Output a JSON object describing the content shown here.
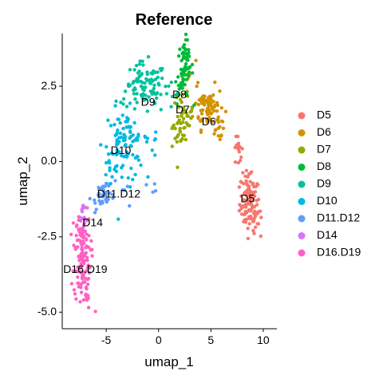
{
  "chart_data": {
    "type": "scatter",
    "title": "Reference",
    "xlabel": "umap_1",
    "ylabel": "umap_2",
    "xlim": [
      -9.2,
      11.3
    ],
    "ylim": [
      -5.55,
      4.25
    ],
    "xticks": [
      {
        "value": -5,
        "label": "-5"
      },
      {
        "value": 0,
        "label": "0"
      },
      {
        "value": 5,
        "label": "5"
      },
      {
        "value": 10,
        "label": "10"
      }
    ],
    "yticks": [
      {
        "value": 2.5,
        "label": "2.5"
      },
      {
        "value": 0,
        "label": "0.0"
      },
      {
        "value": -2.5,
        "label": "-2.5"
      },
      {
        "value": -5,
        "label": "-5.0"
      }
    ],
    "grid": false,
    "legend_position": "right",
    "series": [
      {
        "name": "D5",
        "color": "#F8766D",
        "cluster": {
          "cx": 8.7,
          "cy": -1.4,
          "sx": 0.6,
          "sy": 0.55,
          "n": 80
        },
        "path": [
          [
            6.9,
            0.9
          ],
          [
            7.5,
            0.4
          ],
          [
            8.0,
            -0.2
          ],
          [
            8.5,
            -0.8
          ],
          [
            8.9,
            -1.4
          ],
          [
            9.3,
            -1.9
          ],
          [
            9.6,
            -2.3
          ]
        ],
        "label_pos": [
          8.5,
          -1.25
        ]
      },
      {
        "name": "D6",
        "color": "#D39200",
        "cluster": {
          "cx": 4.8,
          "cy": 1.8,
          "sx": 0.9,
          "sy": 0.45,
          "n": 55
        },
        "path": [
          [
            3.3,
            2.8
          ],
          [
            4.0,
            2.2
          ],
          [
            4.6,
            1.8
          ],
          [
            5.2,
            1.5
          ],
          [
            5.8,
            1.1
          ],
          [
            6.5,
            0.9
          ]
        ],
        "label_pos": [
          4.8,
          1.3
        ]
      },
      {
        "name": "D7",
        "color": "#93AA00",
        "cluster": {
          "cx": 2.3,
          "cy": 1.3,
          "sx": 0.6,
          "sy": 0.55,
          "n": 30
        },
        "path": [
          [
            1.6,
            0.6
          ],
          [
            2.0,
            1.1
          ],
          [
            2.4,
            1.6
          ],
          [
            2.8,
            2.0
          ]
        ],
        "label_pos": [
          2.3,
          1.7
        ]
      },
      {
        "name": "D8",
        "color": "#00BA38",
        "cluster": {
          "cx": 2.5,
          "cy": 3.1,
          "sx": 0.5,
          "sy": 0.6,
          "n": 45
        },
        "path": [
          [
            2.0,
            2.2
          ],
          [
            2.3,
            2.8
          ],
          [
            2.6,
            3.4
          ],
          [
            2.8,
            3.9
          ]
        ],
        "label_pos": [
          2.0,
          2.2
        ]
      },
      {
        "name": "D9",
        "color": "#00C19F",
        "cluster": {
          "cx": -1.3,
          "cy": 2.4,
          "sx": 1.3,
          "sy": 0.55,
          "n": 70
        },
        "path": [
          [
            -3.3,
            2.0
          ],
          [
            -2.3,
            2.5
          ],
          [
            -1.0,
            2.7
          ],
          [
            0.3,
            2.5
          ],
          [
            1.3,
            2.2
          ]
        ],
        "label_pos": [
          -1.0,
          1.95
        ]
      },
      {
        "name": "D10",
        "color": "#00B9E3",
        "cluster": {
          "cx": -3.3,
          "cy": 0.5,
          "sx": 1.2,
          "sy": 0.75,
          "n": 80
        },
        "path": [
          [
            -5.2,
            -0.6
          ],
          [
            -4.6,
            0.3
          ],
          [
            -3.6,
            0.9
          ],
          [
            -2.0,
            1.0
          ],
          [
            -0.5,
            0.6
          ]
        ],
        "label_pos": [
          -3.6,
          0.35
        ]
      },
      {
        "name": "D11.D12",
        "color": "#619CFF",
        "cluster": {
          "cx": -5.2,
          "cy": -1.1,
          "sx": 0.6,
          "sy": 0.35,
          "n": 25
        },
        "path": [
          [
            -6.4,
            -1.5
          ],
          [
            -5.5,
            -1.2
          ],
          [
            -4.8,
            -0.8
          ],
          [
            -0.2,
            -0.9
          ]
        ],
        "label_pos": [
          -3.8,
          -1.1
        ]
      },
      {
        "name": "D14",
        "color": "#DB72FB",
        "cluster": {
          "cx": -7.2,
          "cy": -1.9,
          "sx": 0.3,
          "sy": 0.25,
          "n": 10
        },
        "path": [
          [
            -7.6,
            -1.5
          ],
          [
            -7.0,
            -2.1
          ]
        ],
        "label_pos": [
          -6.3,
          -2.05
        ]
      },
      {
        "name": "D16.D19",
        "color": "#FF61C3",
        "cluster": {
          "cx": -7.3,
          "cy": -3.2,
          "sx": 0.5,
          "sy": 0.9,
          "n": 100
        },
        "path": [
          [
            -7.5,
            -1.6
          ],
          [
            -7.7,
            -2.5
          ],
          [
            -7.6,
            -3.4
          ],
          [
            -7.2,
            -4.2
          ],
          [
            -6.5,
            -4.9
          ]
        ],
        "label_pos": [
          -7.0,
          -3.6
        ]
      }
    ]
  }
}
